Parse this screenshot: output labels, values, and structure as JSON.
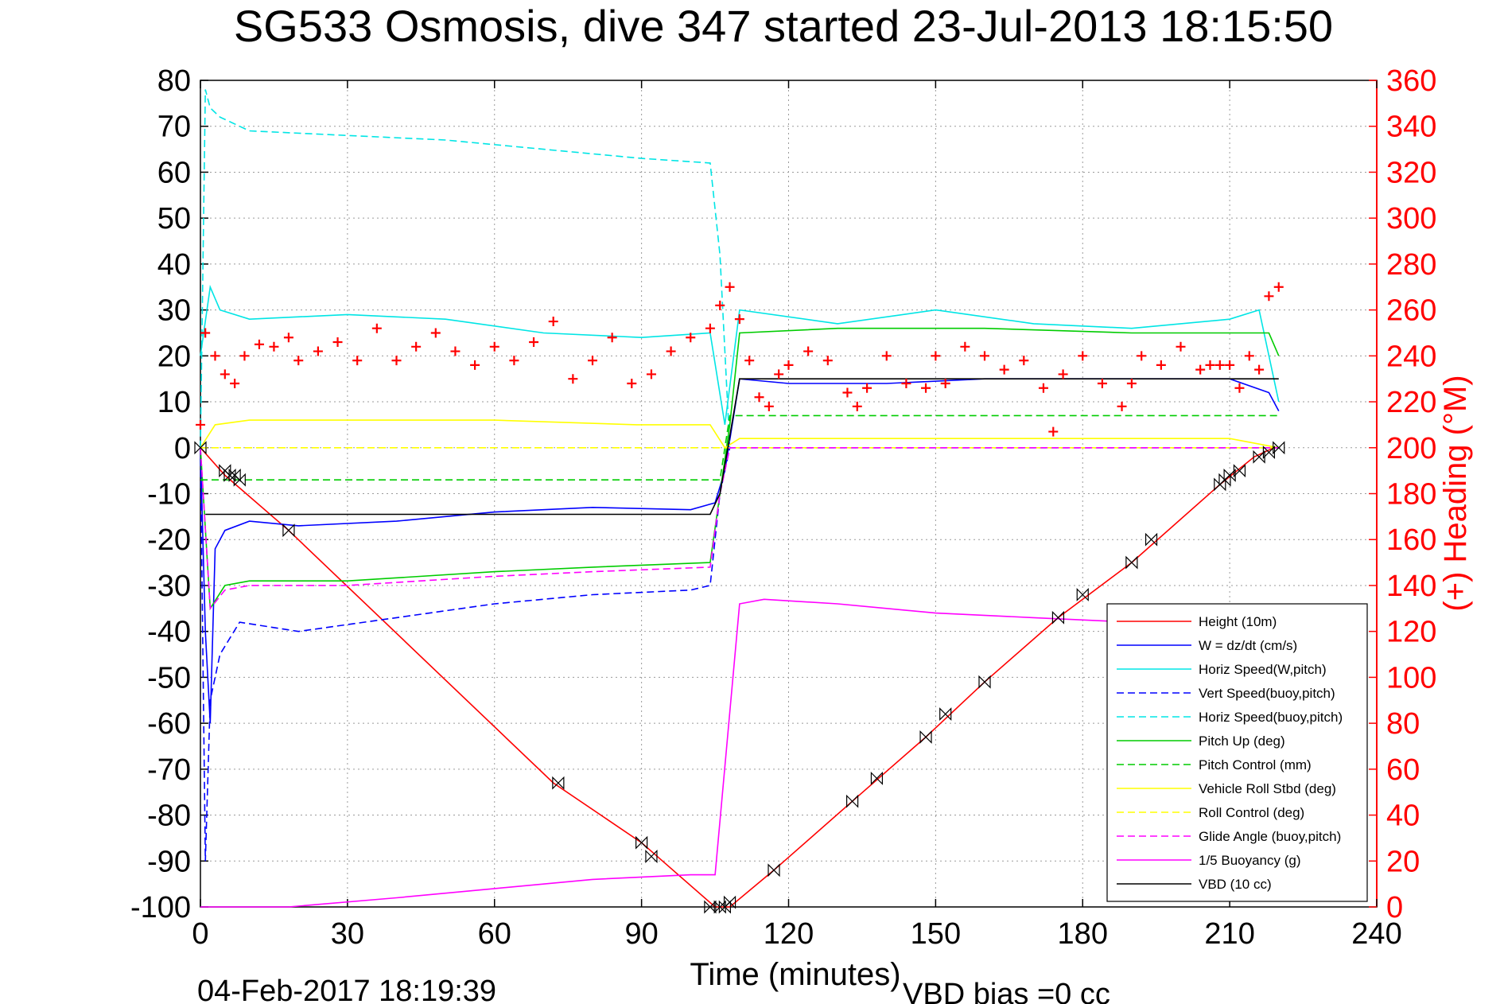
{
  "chart_data": {
    "type": "line",
    "title": "SG533 Osmosis, dive 347 started 23-Jul-2013 18:15:50",
    "xlabel": "Time (minutes)",
    "ylabel_right": "(+) Heading (°M)",
    "xlim": [
      0,
      240
    ],
    "ylim_left": [
      -100,
      80
    ],
    "ylim_right": [
      0,
      360
    ],
    "x_ticks": [
      "0",
      "30",
      "60",
      "90",
      "120",
      "150",
      "180",
      "210",
      "240"
    ],
    "y_ticks_left": [
      "80",
      "70",
      "60",
      "50",
      "40",
      "30",
      "20",
      "10",
      "0",
      "-10",
      "-20",
      "-30",
      "-40",
      "-50",
      "-60",
      "-70",
      "-80",
      "-90",
      "-100"
    ],
    "y_ticks_right": [
      "360",
      "340",
      "320",
      "300",
      "280",
      "260",
      "240",
      "220",
      "200",
      "180",
      "160",
      "140",
      "120",
      "100",
      "80",
      "60",
      "40",
      "20",
      "0"
    ],
    "grid": true,
    "legend_placement": "bottom-right",
    "footer_date": "04-Feb-2017 18:19:39",
    "footer_note": "VBD bias =0 cc",
    "series": [
      {
        "name": "Height (10m)",
        "color": "#ff0000",
        "dash": "solid",
        "axis": "left",
        "x": [
          0,
          5,
          18,
          72,
          90,
          105,
          108,
          117,
          133,
          148,
          160,
          175,
          190,
          208,
          215,
          219,
          220
        ],
        "y": [
          0,
          -6,
          -18,
          -73,
          -86,
          -100,
          -100,
          -92,
          -77,
          -63,
          -51,
          -37,
          -25,
          -8,
          -2,
          0,
          0
        ]
      },
      {
        "name": "W = dz/dt (cm/s)",
        "color": "#0000ff",
        "dash": "solid",
        "axis": "left",
        "x": [
          0,
          1,
          2,
          3,
          5,
          10,
          20,
          40,
          60,
          80,
          100,
          105,
          107,
          110,
          120,
          140,
          160,
          180,
          200,
          210,
          218,
          220
        ],
        "y": [
          0,
          -40,
          -60,
          -22,
          -18,
          -16,
          -17,
          -16,
          -14,
          -13,
          -13.5,
          -12,
          -5,
          15,
          14,
          14,
          15,
          15,
          15,
          15,
          12,
          8
        ]
      },
      {
        "name": "Horiz Speed(W,pitch)",
        "color": "#00e5e5",
        "dash": "solid",
        "axis": "left",
        "x": [
          0,
          2,
          4,
          10,
          30,
          50,
          70,
          90,
          104,
          107,
          110,
          130,
          150,
          170,
          190,
          210,
          216,
          220
        ],
        "y": [
          20,
          35,
          30,
          28,
          29,
          28,
          25,
          24,
          25,
          5,
          30,
          27,
          30,
          27,
          26,
          28,
          30,
          10
        ]
      },
      {
        "name": "Vert Speed(buoy,pitch)",
        "color": "#0000ff",
        "dash": "dashed",
        "axis": "left",
        "x": [
          0,
          1,
          2,
          4,
          8,
          20,
          40,
          60,
          80,
          100,
          104,
          106,
          108,
          220
        ],
        "y": [
          0,
          -90,
          -55,
          -45,
          -38,
          -40,
          -37,
          -34,
          -32,
          -31,
          -30,
          -10,
          0,
          0
        ]
      },
      {
        "name": "Horiz Speed(buoy,pitch)",
        "color": "#00e5e5",
        "dash": "dashed",
        "axis": "left",
        "x": [
          0,
          1,
          2,
          4,
          10,
          30,
          50,
          70,
          90,
          104,
          106,
          108,
          220
        ],
        "y": [
          0,
          78,
          74,
          72,
          69,
          68,
          67,
          65,
          63,
          62,
          42,
          0,
          0
        ]
      },
      {
        "name": "Pitch Up (deg)",
        "color": "#00cc00",
        "dash": "solid",
        "axis": "left",
        "x": [
          0,
          2,
          5,
          10,
          30,
          60,
          80,
          104,
          106,
          108,
          110,
          130,
          160,
          190,
          210,
          218,
          220
        ],
        "y": [
          0,
          -35,
          -30,
          -29,
          -29,
          -27,
          -26,
          -25,
          -10,
          5,
          25,
          26,
          26,
          25,
          25,
          25,
          20
        ]
      },
      {
        "name": "Pitch Control (mm)",
        "color": "#00cc00",
        "dash": "dashed",
        "axis": "left",
        "x": [
          0,
          2,
          106,
          108,
          220
        ],
        "y": [
          -7,
          -7,
          -7,
          7,
          7
        ]
      },
      {
        "name": "Vehicle Roll Stbd (deg)",
        "color": "#ffff00",
        "dash": "solid",
        "axis": "left",
        "x": [
          0,
          3,
          10,
          30,
          60,
          89,
          92,
          104,
          107,
          110,
          140,
          170,
          200,
          210,
          220
        ],
        "y": [
          0,
          5,
          6,
          6,
          6,
          5,
          5,
          5,
          0,
          2,
          2,
          2,
          2,
          2,
          0
        ]
      },
      {
        "name": "Roll Control (deg)",
        "color": "#ffff00",
        "dash": "dashed",
        "axis": "left",
        "x": [
          0,
          220
        ],
        "y": [
          0,
          0
        ]
      },
      {
        "name": "Glide Angle (buoy,pitch)",
        "color": "#ff00ff",
        "dash": "dashed",
        "axis": "left",
        "x": [
          0,
          2,
          5,
          10,
          30,
          60,
          80,
          104,
          106,
          108,
          220
        ],
        "y": [
          0,
          -35,
          -31,
          -30,
          -30,
          -28,
          -27,
          -26,
          -10,
          0,
          0
        ]
      },
      {
        "name": "1/5 Buoyancy (g)",
        "color": "#ff00ff",
        "dash": "solid",
        "axis": "left",
        "x": [
          0,
          18,
          40,
          60,
          80,
          100,
          105,
          110,
          115,
          130,
          150,
          170,
          190,
          200
        ],
        "y": [
          -100,
          -100,
          -98,
          -96,
          -94,
          -93,
          -93,
          -34,
          -33,
          -34,
          -36,
          -37,
          -38,
          -39
        ]
      },
      {
        "name": "VBD (10 cc)",
        "color": "#000000",
        "dash": "solid",
        "axis": "left",
        "x": [
          1,
          104,
          106,
          110,
          220
        ],
        "y": [
          -14.5,
          -14.5,
          -10,
          15,
          15
        ]
      }
    ],
    "heading": {
      "color": "#ff0000",
      "axis": "right",
      "marker": "+",
      "x": [
        0,
        1,
        3,
        5,
        7,
        9,
        12,
        15,
        18,
        20,
        24,
        28,
        32,
        36,
        40,
        44,
        48,
        52,
        56,
        60,
        64,
        68,
        72,
        76,
        80,
        84,
        88,
        92,
        96,
        100,
        104,
        106,
        108,
        110,
        112,
        114,
        116,
        118,
        120,
        124,
        128,
        132,
        134,
        136,
        140,
        144,
        148,
        150,
        152,
        156,
        160,
        164,
        168,
        172,
        174,
        176,
        180,
        184,
        188,
        190,
        192,
        196,
        200,
        204,
        206,
        208,
        210,
        212,
        214,
        216,
        218,
        220
      ],
      "y": [
        210,
        250,
        240,
        232,
        228,
        240,
        245,
        244,
        248,
        238,
        242,
        246,
        238,
        252,
        238,
        244,
        250,
        242,
        236,
        244,
        238,
        246,
        255,
        230,
        238,
        248,
        228,
        232,
        242,
        248,
        252,
        262,
        270,
        256,
        238,
        222,
        218,
        232,
        236,
        242,
        238,
        224,
        218,
        226,
        240,
        228,
        226,
        240,
        228,
        244,
        240,
        234,
        238,
        226,
        207,
        232,
        240,
        228,
        218,
        228,
        240,
        236,
        244,
        234,
        236,
        236,
        236,
        226,
        240,
        234,
        266,
        270
      ]
    },
    "depth_markers": {
      "color": "#000000",
      "x": [
        0,
        5,
        6,
        7,
        8,
        18,
        73,
        90,
        92,
        104,
        106,
        107,
        108,
        117,
        133,
        138,
        148,
        152,
        160,
        175,
        180,
        190,
        194,
        208,
        209,
        210,
        212,
        216,
        218,
        220
      ],
      "y": [
        0,
        -5,
        -6,
        -6,
        -7,
        -18,
        -73,
        -86,
        -89,
        -100,
        -100,
        -100,
        -99,
        -92,
        -77,
        -72,
        -63,
        -58,
        -51,
        -37,
        -32,
        -25,
        -20,
        -8,
        -7,
        -6,
        -5,
        -2,
        -1,
        0
      ]
    }
  }
}
